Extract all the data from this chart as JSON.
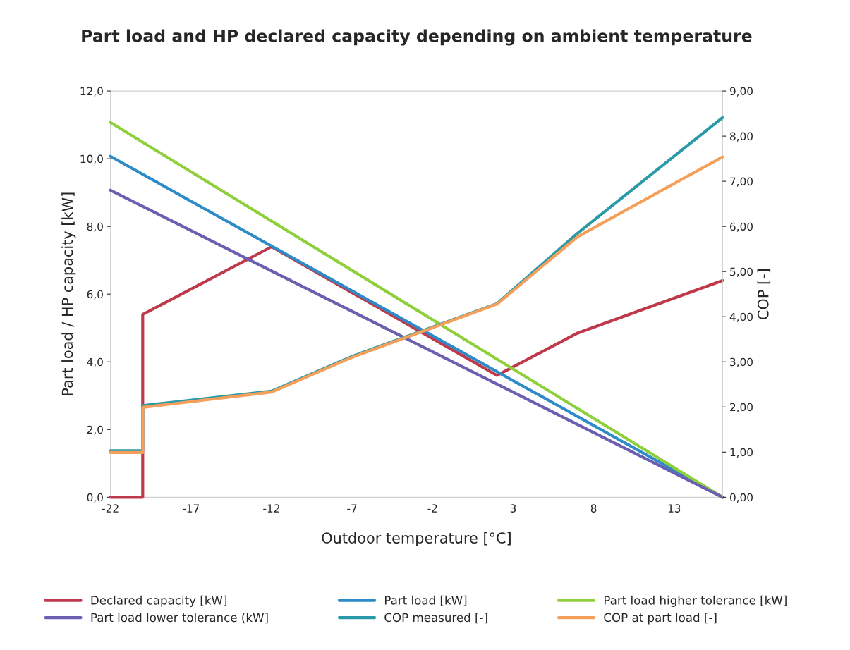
{
  "chart_data": {
    "type": "line",
    "title": "Part load and HP declared capacity depending on ambient temperature",
    "xlabel": "Outdoor temperature [°C]",
    "ylabel": "Part load / HP capacity [kW]",
    "y2label": "COP [-]",
    "xlim": [
      -22,
      16
    ],
    "xticks": [
      -22,
      -17,
      -12,
      -7,
      -2,
      3,
      8,
      13
    ],
    "ylim": [
      0,
      12
    ],
    "yticks": [
      {
        "value": 0,
        "label": "0,0"
      },
      {
        "value": 2,
        "label": "2,0"
      },
      {
        "value": 4,
        "label": "4,0"
      },
      {
        "value": 6,
        "label": "6,0"
      },
      {
        "value": 8,
        "label": "8,0"
      },
      {
        "value": 10,
        "label": "10,0"
      },
      {
        "value": 12,
        "label": "12,0"
      }
    ],
    "y2lim": [
      0,
      9
    ],
    "y2ticks": [
      {
        "value": 0,
        "label": "0,00"
      },
      {
        "value": 1,
        "label": "1,00"
      },
      {
        "value": 2,
        "label": "2,00"
      },
      {
        "value": 3,
        "label": "3,00"
      },
      {
        "value": 4,
        "label": "4,00"
      },
      {
        "value": 5,
        "label": "5,00"
      },
      {
        "value": 6,
        "label": "6,00"
      },
      {
        "value": 7,
        "label": "7,00"
      },
      {
        "value": 8,
        "label": "8,00"
      },
      {
        "value": 9,
        "label": "9,00"
      }
    ],
    "legend": "bottom",
    "grid": false,
    "marker": "none",
    "line_style": "solid",
    "series": [
      {
        "name": "Declared capacity [kW]",
        "color": "#be3a4a",
        "x": [
          -22,
          -20,
          -20,
          -12,
          2,
          7,
          16
        ],
        "values": [
          0,
          0,
          5.4,
          7.4,
          3.6,
          4.85,
          6.4
        ]
      },
      {
        "name": "Part load [kW]",
        "color": "#2e8bc8",
        "x": [
          -22,
          16
        ],
        "values": [
          10.07,
          0
        ]
      },
      {
        "name": "Part load higher tolerance [kW]",
        "color": "#8fcf3c",
        "x": [
          -22,
          16
        ],
        "values": [
          11.07,
          0
        ]
      },
      {
        "name": "Part load lower tolerance (kW]",
        "color": "#6a5fb0",
        "x": [
          -22,
          16
        ],
        "values": [
          9.07,
          0
        ]
      },
      {
        "name": "COP measured [-]",
        "color": "#2a9aa8",
        "axis": "y2",
        "x": [
          -22,
          -20,
          -20,
          -12,
          -7,
          2,
          7,
          16
        ],
        "values": [
          1.03,
          1.03,
          2.03,
          2.35,
          3.12,
          4.29,
          5.85,
          8.41
        ]
      },
      {
        "name": "COP at part load [-]",
        "color": "#f5a05a",
        "axis": "y2",
        "x": [
          -22,
          -20,
          -20,
          -12,
          -7,
          2,
          7,
          16
        ],
        "values": [
          0.99,
          0.99,
          1.99,
          2.33,
          3.1,
          4.28,
          5.77,
          7.54
        ]
      }
    ]
  }
}
